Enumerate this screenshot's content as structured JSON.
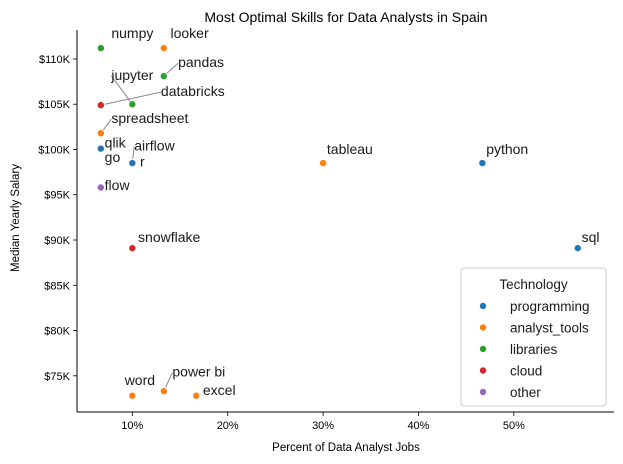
{
  "chart_data": {
    "type": "scatter",
    "title": "Most Optimal Skills for Data Analysts in Spain",
    "xlabel": "Percent of Data Analyst Jobs",
    "ylabel": "Median Yearly Salary",
    "xlim": [
      4.2,
      60.5
    ],
    "ylim": [
      71000,
      113200
    ],
    "x_ticks": [
      10,
      20,
      30,
      40,
      50
    ],
    "x_tick_labels": [
      "10%",
      "20%",
      "30%",
      "40%",
      "50%"
    ],
    "y_ticks": [
      75000,
      80000,
      85000,
      90000,
      95000,
      100000,
      105000,
      110000
    ],
    "y_tick_labels": [
      "$75K",
      "$80K",
      "$85K",
      "$90K",
      "$95K",
      "$100K",
      "$105K",
      "$110K"
    ],
    "grid": false,
    "legend": {
      "title": "Technology",
      "position": "lower-right",
      "entries": [
        {
          "name": "programming",
          "color": "#1f77b4"
        },
        {
          "name": "analyst_tools",
          "color": "#ff7f0e"
        },
        {
          "name": "libraries",
          "color": "#2ca02c"
        },
        {
          "name": "cloud",
          "color": "#d62728"
        },
        {
          "name": "other",
          "color": "#9467bd"
        }
      ]
    },
    "points": [
      {
        "skill": "numpy",
        "x": 6.7,
        "y": 111200,
        "group": "libraries",
        "color": "#2ca02c",
        "label_x": 7.8,
        "label_y": 112300,
        "leader": false
      },
      {
        "skill": "looker",
        "x": 13.3,
        "y": 111200,
        "group": "analyst_tools",
        "color": "#ff7f0e",
        "label_x": 14.0,
        "label_y": 112300,
        "leader": false
      },
      {
        "skill": "pandas",
        "x": 13.3,
        "y": 108100,
        "group": "libraries",
        "color": "#2ca02c",
        "label_x": 14.8,
        "label_y": 109100,
        "leader": true
      },
      {
        "skill": "jupyter",
        "x": 10.0,
        "y": 105000,
        "group": "libraries",
        "color": "#2ca02c",
        "label_x": 7.8,
        "label_y": 107700,
        "leader": true
      },
      {
        "skill": "databricks",
        "x": 6.7,
        "y": 104900,
        "group": "cloud",
        "color": "#d62728",
        "label_x": 13.0,
        "label_y": 105900,
        "leader": true
      },
      {
        "skill": "spreadsheet",
        "x": 6.7,
        "y": 101800,
        "group": "analyst_tools",
        "color": "#ff7f0e",
        "label_x": 7.8,
        "label_y": 102900,
        "leader": true
      },
      {
        "skill": "qlik",
        "x": 6.7,
        "y": 100100,
        "group": "programming",
        "color": "#1f77b4",
        "label_x": 7.1,
        "label_y": 100200,
        "leader": false
      },
      {
        "skill": "airflow",
        "x": 10.0,
        "y": 98500,
        "group": "libraries",
        "color": "#2ca02c",
        "label_x": 10.2,
        "label_y": 99900,
        "leader": true
      },
      {
        "skill": "go",
        "x": 10.0,
        "y": 98500,
        "group": "programming",
        "color": "#1f77b4",
        "label_x": 7.1,
        "label_y": 98600,
        "leader": false
      },
      {
        "skill": "r",
        "x": 10.0,
        "y": 98500,
        "group": "programming",
        "color": "#1f77b4",
        "label_x": 10.8,
        "label_y": 98100,
        "leader": false
      },
      {
        "skill": "flow",
        "x": 6.7,
        "y": 95800,
        "group": "other",
        "color": "#9467bd",
        "label_x": 7.1,
        "label_y": 95500,
        "leader": false
      },
      {
        "skill": "tableau",
        "x": 30.0,
        "y": 98500,
        "group": "analyst_tools",
        "color": "#ff7f0e",
        "label_x": 30.4,
        "label_y": 99500,
        "leader": false
      },
      {
        "skill": "python",
        "x": 46.7,
        "y": 98500,
        "group": "programming",
        "color": "#1f77b4",
        "label_x": 47.1,
        "label_y": 99500,
        "leader": false
      },
      {
        "skill": "snowflake",
        "x": 10.0,
        "y": 89100,
        "group": "cloud",
        "color": "#d62728",
        "label_x": 10.6,
        "label_y": 89800,
        "leader": false
      },
      {
        "skill": "sql",
        "x": 56.7,
        "y": 89100,
        "group": "programming",
        "color": "#1f77b4",
        "label_x": 57.1,
        "label_y": 89800,
        "leader": false
      },
      {
        "skill": "word",
        "x": 10.0,
        "y": 72800,
        "group": "analyst_tools",
        "color": "#ff7f0e",
        "label_x": 9.2,
        "label_y": 74000,
        "leader": false
      },
      {
        "skill": "power bi",
        "x": 13.3,
        "y": 73300,
        "group": "analyst_tools",
        "color": "#ff7f0e",
        "label_x": 14.2,
        "label_y": 74900,
        "leader": true
      },
      {
        "skill": "excel",
        "x": 16.7,
        "y": 72800,
        "group": "analyst_tools",
        "color": "#ff7f0e",
        "label_x": 17.4,
        "label_y": 72900,
        "leader": false
      }
    ]
  }
}
